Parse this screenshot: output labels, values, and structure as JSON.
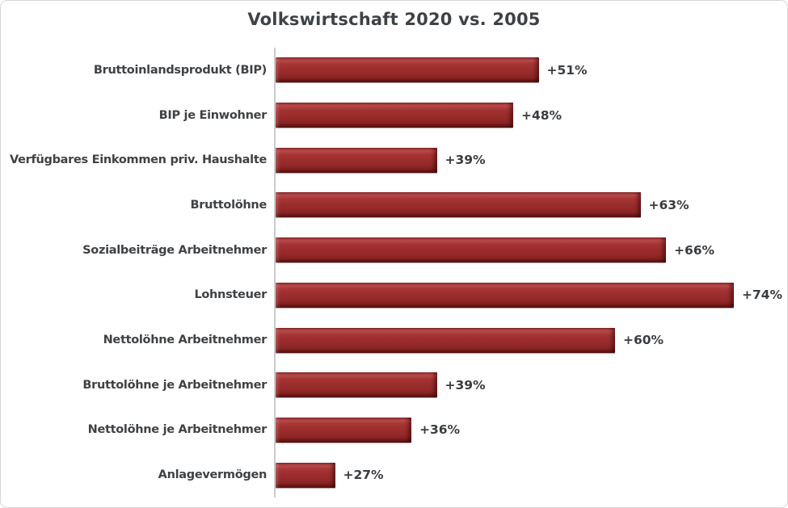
{
  "chart_data": {
    "type": "bar",
    "orientation": "horizontal",
    "title": "Volkswirtschaft 2020 vs. 2005",
    "categories": [
      "Bruttoinlandsprodukt (BIP)",
      "BIP je Einwohner",
      "Verfügbares Einkommen priv. Haushalte",
      "Bruttolöhne",
      "Sozialbeiträge Arbeitnehmer",
      "Lohnsteuer",
      "Nettolöhne Arbeitnehmer",
      "Bruttolöhne je Arbeitnehmer",
      "Nettolöhne je Arbeitnehmer",
      "Anlagevermögen"
    ],
    "values": [
      51,
      48,
      39,
      63,
      66,
      74,
      60,
      39,
      36,
      27
    ],
    "value_labels": [
      "+51%",
      "+48%",
      "+39%",
      "+63%",
      "+66%",
      "+74%",
      "+60%",
      "+39%",
      "+36%",
      "+27%"
    ],
    "unit": "%",
    "xlim": [
      20,
      80
    ],
    "x_axis_labels_visible": false,
    "gridlines": false,
    "legend": "none",
    "bar_color": "#9b2d2d",
    "axis_line_color": "#cbcbcb",
    "title_color": "#3f4245",
    "label_color": "#3f4245",
    "value_label_color": "#3a3d40",
    "border_color": "#d7d7d7",
    "background_color": "#ffffff"
  }
}
